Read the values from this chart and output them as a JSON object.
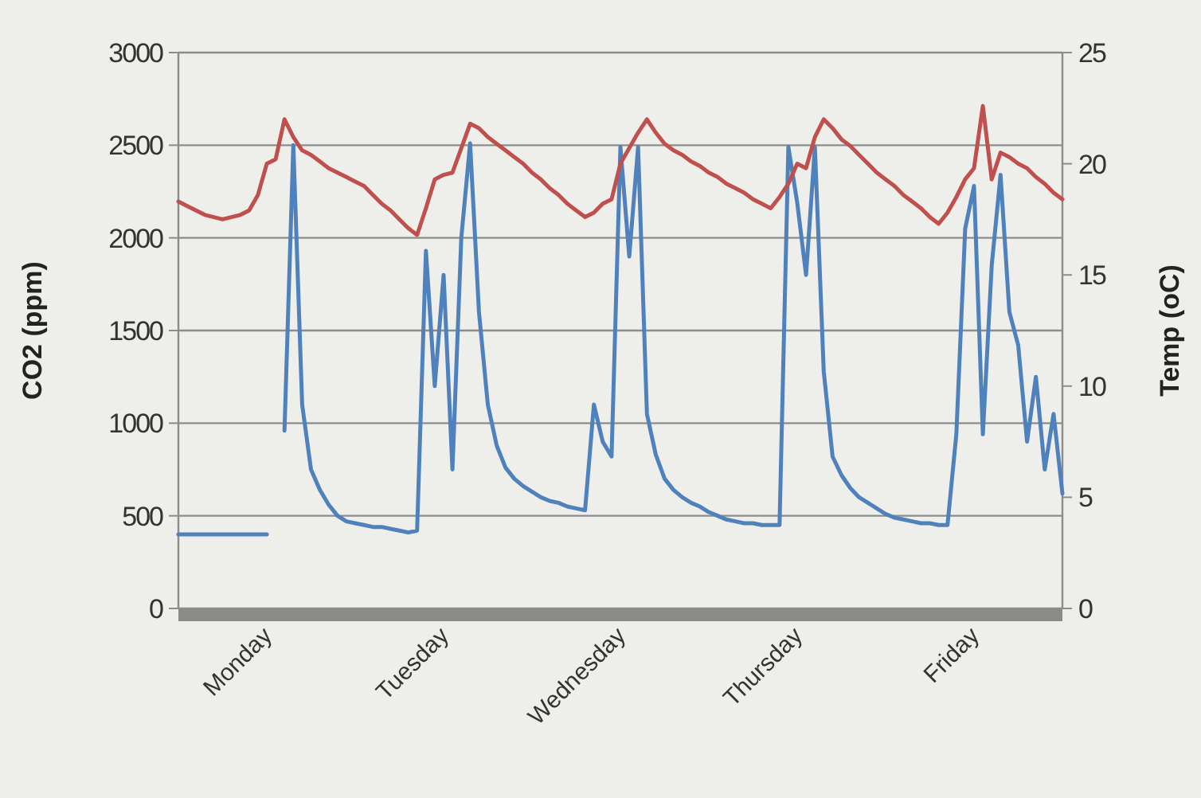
{
  "chart_data": {
    "type": "line",
    "ylabel": "CO2 (ppm)",
    "y2label": "Temp (oC)",
    "categories": [
      null,
      null,
      null,
      null,
      null,
      null,
      null,
      null,
      null,
      null,
      "Monday",
      null,
      null,
      null,
      null,
      null,
      null,
      null,
      null,
      null,
      null,
      null,
      null,
      null,
      null,
      null,
      null,
      null,
      null,
      null,
      "Tuesday",
      null,
      null,
      null,
      null,
      null,
      null,
      null,
      null,
      null,
      null,
      null,
      null,
      null,
      null,
      null,
      null,
      null,
      null,
      null,
      "Wednesday",
      null,
      null,
      null,
      null,
      null,
      null,
      null,
      null,
      null,
      null,
      null,
      null,
      null,
      null,
      null,
      null,
      null,
      null,
      null,
      "Thursday",
      null,
      null,
      null,
      null,
      null,
      null,
      null,
      null,
      null,
      null,
      null,
      null,
      null,
      null,
      null,
      null,
      null,
      null,
      null,
      "Friday",
      null,
      null,
      null,
      null,
      null,
      null,
      null,
      null,
      null,
      null
    ],
    "ylim": [
      0,
      3000
    ],
    "yticks": [
      0,
      500,
      1000,
      1500,
      2000,
      2500,
      3000
    ],
    "y2lim": [
      0,
      25
    ],
    "y2ticks": [
      0,
      5,
      10,
      15,
      20,
      25
    ],
    "grid": "y",
    "line_style": "solid",
    "marker": "none",
    "series": [
      {
        "color": "#4f81bd",
        "values": [
          400,
          400,
          400,
          400,
          400,
          400,
          400,
          400,
          400,
          400,
          400,
          null,
          960,
          2500,
          1100,
          750,
          640,
          560,
          500,
          470,
          460,
          450,
          440,
          440,
          430,
          420,
          410,
          420,
          1930,
          1200,
          1800,
          750,
          2000,
          2510,
          1600,
          1100,
          880,
          760,
          700,
          660,
          630,
          600,
          580,
          570,
          550,
          540,
          530,
          1100,
          900,
          820,
          2490,
          1900,
          2490,
          1050,
          830,
          700,
          640,
          600,
          570,
          550,
          520,
          500,
          480,
          470,
          460,
          460,
          450,
          450,
          450,
          2490,
          2190,
          1800,
          2490,
          1280,
          820,
          720,
          650,
          600,
          570,
          540,
          510,
          490,
          480,
          470,
          460,
          460,
          450,
          450,
          940,
          2050,
          2280,
          940,
          1850,
          2340,
          1600,
          1420,
          900,
          1250,
          750,
          1050,
          620
        ]
      },
      {
        "color": "#c0504d",
        "axis": "y2",
        "values": [
          18.3,
          18.1,
          17.9,
          17.7,
          17.6,
          17.5,
          17.6,
          17.7,
          17.9,
          18.6,
          20.0,
          20.2,
          22.0,
          21.2,
          20.6,
          20.4,
          20.1,
          19.8,
          19.6,
          19.4,
          19.2,
          19.0,
          18.6,
          18.2,
          17.9,
          17.5,
          17.1,
          16.8,
          18.0,
          19.3,
          19.5,
          19.6,
          20.7,
          21.8,
          21.6,
          21.2,
          20.9,
          20.6,
          20.3,
          20.0,
          19.6,
          19.3,
          18.9,
          18.6,
          18.2,
          17.9,
          17.6,
          17.8,
          18.2,
          18.4,
          20.0,
          20.7,
          21.4,
          22.0,
          21.4,
          20.9,
          20.6,
          20.4,
          20.1,
          19.9,
          19.6,
          19.4,
          19.1,
          18.9,
          18.7,
          18.4,
          18.2,
          18.0,
          18.5,
          19.1,
          20.0,
          19.8,
          21.2,
          22.0,
          21.6,
          21.1,
          20.8,
          20.4,
          20.0,
          19.6,
          19.3,
          19.0,
          18.6,
          18.3,
          18.0,
          17.6,
          17.3,
          17.8,
          18.5,
          19.3,
          19.8,
          22.6,
          19.3,
          20.5,
          20.3,
          20.0,
          19.8,
          19.4,
          19.1,
          18.7,
          18.4
        ]
      }
    ]
  }
}
